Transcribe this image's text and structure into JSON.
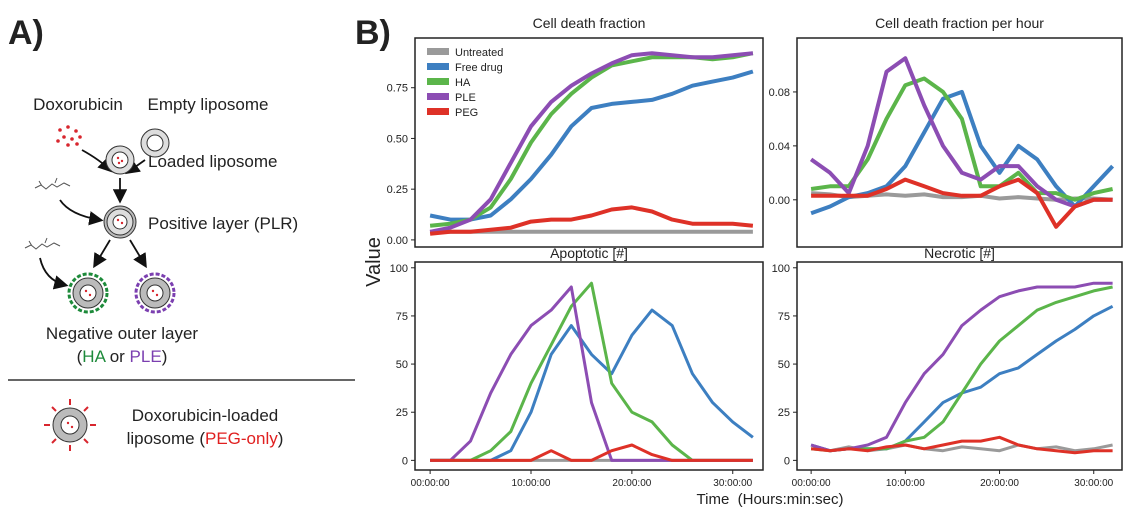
{
  "panel_a": {
    "label": "A)",
    "doxorubicin": "Doxorubicin",
    "empty_liposome": "Empty liposome",
    "loaded_liposome": "Loaded liposome",
    "positive_layer": "Positive layer (PLR)",
    "negative_layer": "Negative outer layer",
    "negative_open": "(",
    "negative_ha": "HA",
    "negative_or": " or ",
    "negative_ple": "PLE",
    "negative_close": ")",
    "peg_line1": "Doxorubicin-loaded",
    "peg_line2_open": "liposome (",
    "peg_line2_peg": "PEG-only",
    "peg_line2_close": ")"
  },
  "figure": {
    "panel_b_label": "B)",
    "y_label": "Value",
    "x_label": "Time  (Hours:min:sec)"
  },
  "chart_data": [
    {
      "type": "line",
      "title": "Cell death fraction",
      "legend": "upper left",
      "x": [
        0,
        2,
        4,
        6,
        8,
        10,
        12,
        14,
        16,
        18,
        20,
        22,
        24,
        26,
        28,
        30,
        32
      ],
      "xlim": [
        -1.5,
        33
      ],
      "ylim": [
        -0.035,
        0.995
      ],
      "yticks": [
        {
          "value": 0,
          "label": "0.00"
        },
        0.25,
        {
          "value": 0.5,
          "label": "0.50"
        },
        0.75
      ],
      "series": [
        {
          "name": "Untreated",
          "color": "#9a9a9a",
          "values": [
            0.04,
            0.04,
            0.04,
            0.04,
            0.04,
            0.04,
            0.04,
            0.04,
            0.04,
            0.04,
            0.04,
            0.04,
            0.04,
            0.04,
            0.04,
            0.04,
            0.04
          ]
        },
        {
          "name": "Free drug",
          "color": "#3d7fc1",
          "values": [
            0.12,
            0.1,
            0.1,
            0.12,
            0.2,
            0.3,
            0.42,
            0.56,
            0.65,
            0.67,
            0.68,
            0.69,
            0.72,
            0.76,
            0.78,
            0.8,
            0.83
          ]
        },
        {
          "name": "HA",
          "color": "#5bb54a",
          "values": [
            0.07,
            0.08,
            0.1,
            0.16,
            0.3,
            0.48,
            0.62,
            0.72,
            0.8,
            0.86,
            0.88,
            0.9,
            0.9,
            0.9,
            0.89,
            0.9,
            0.92
          ]
        },
        {
          "name": "PLE",
          "color": "#8c4db3",
          "values": [
            0.04,
            0.06,
            0.1,
            0.2,
            0.38,
            0.56,
            0.68,
            0.76,
            0.82,
            0.87,
            0.91,
            0.92,
            0.91,
            0.9,
            0.9,
            0.91,
            0.92
          ]
        },
        {
          "name": "PEG",
          "color": "#de3127",
          "values": [
            0.03,
            0.04,
            0.04,
            0.05,
            0.06,
            0.09,
            0.1,
            0.1,
            0.12,
            0.15,
            0.16,
            0.14,
            0.1,
            0.08,
            0.08,
            0.08,
            0.07
          ]
        }
      ]
    },
    {
      "type": "line",
      "title": "Cell death fraction per hour",
      "x": [
        0,
        2,
        4,
        6,
        8,
        10,
        12,
        14,
        16,
        18,
        20,
        22,
        24,
        26,
        28,
        30,
        32
      ],
      "xlim": [
        -1.5,
        33
      ],
      "ylim": [
        -0.035,
        0.12
      ],
      "yticks": [
        {
          "value": 0,
          "label": "0.00"
        },
        0.04,
        0.08
      ],
      "series": [
        {
          "color": "#9a9a9a",
          "values": [
            0.005,
            0.004,
            0.002,
            0.003,
            0.004,
            0.003,
            0.004,
            0.002,
            0.002,
            0.003,
            0.001,
            0.002,
            0.001,
            0,
            0.001,
            0.001,
            0
          ]
        },
        {
          "color": "#3d7fc1",
          "values": [
            -0.01,
            -0.005,
            0.002,
            0.005,
            0.01,
            0.025,
            0.05,
            0.075,
            0.08,
            0.04,
            0.02,
            0.04,
            0.03,
            0.01,
            -0.005,
            0.01,
            0.025
          ]
        },
        {
          "color": "#5bb54a",
          "values": [
            0.008,
            0.01,
            0.01,
            0.03,
            0.06,
            0.085,
            0.09,
            0.08,
            0.06,
            0.01,
            0.01,
            0.02,
            0.005,
            0.005,
            0,
            0.005,
            0.008
          ]
        },
        {
          "color": "#8c4db3",
          "values": [
            0.03,
            0.02,
            0.005,
            0.04,
            0.095,
            0.105,
            0.07,
            0.04,
            0.02,
            0.015,
            0.025,
            0.025,
            0.01,
            0,
            -0.005,
            0,
            0
          ]
        },
        {
          "color": "#de3127",
          "values": [
            0.003,
            0.003,
            0.003,
            0.003,
            0.008,
            0.015,
            0.01,
            0.005,
            0.003,
            0.003,
            0.01,
            0.015,
            0.005,
            -0.02,
            -0.005,
            0,
            0
          ]
        }
      ]
    },
    {
      "type": "line",
      "title": "Apoptotic [#]",
      "x": [
        0,
        2,
        4,
        6,
        8,
        10,
        12,
        14,
        16,
        18,
        20,
        22,
        24,
        26,
        28,
        30,
        32
      ],
      "xlim": [
        -1.5,
        33
      ],
      "xticks": [
        {
          "value": 0,
          "label": "00:00:00"
        },
        {
          "value": 10,
          "label": "10:00:00"
        },
        {
          "value": 20,
          "label": "20:00:00"
        },
        {
          "value": 30,
          "label": "30:00:00"
        }
      ],
      "ylim": [
        -5,
        103
      ],
      "yticks": [
        0,
        25,
        50,
        75,
        100
      ],
      "series": [
        {
          "color": "#9a9a9a",
          "values": [
            0,
            0,
            0,
            0,
            0,
            0,
            0,
            0,
            0,
            0,
            0,
            0,
            0,
            0,
            0,
            0,
            0
          ]
        },
        {
          "color": "#3d7fc1",
          "values": [
            0,
            0,
            0,
            0,
            5,
            25,
            55,
            70,
            55,
            45,
            65,
            78,
            70,
            45,
            30,
            20,
            12
          ]
        },
        {
          "color": "#5bb54a",
          "values": [
            0,
            0,
            0,
            5,
            15,
            40,
            60,
            80,
            92,
            40,
            25,
            20,
            8,
            0,
            0,
            0,
            0
          ]
        },
        {
          "color": "#8c4db3",
          "values": [
            0,
            0,
            10,
            35,
            55,
            70,
            78,
            90,
            30,
            0,
            0,
            0,
            0,
            0,
            0,
            0,
            0
          ]
        },
        {
          "color": "#de3127",
          "values": [
            0,
            0,
            0,
            0,
            0,
            0,
            5,
            0,
            0,
            5,
            8,
            3,
            0,
            0,
            0,
            0,
            0
          ]
        }
      ]
    },
    {
      "type": "line",
      "title": "Necrotic [#]",
      "x": [
        0,
        2,
        4,
        6,
        8,
        10,
        12,
        14,
        16,
        18,
        20,
        22,
        24,
        26,
        28,
        30,
        32
      ],
      "xlim": [
        -1.5,
        33
      ],
      "xticks": [
        {
          "value": 0,
          "label": "00:00:00"
        },
        {
          "value": 10,
          "label": "10:00:00"
        },
        {
          "value": 20,
          "label": "20:00:00"
        },
        {
          "value": 30,
          "label": "30:00:00"
        }
      ],
      "ylim": [
        -5,
        103
      ],
      "yticks": [
        0,
        25,
        50,
        75,
        100
      ],
      "series": [
        {
          "color": "#9a9a9a",
          "values": [
            8,
            5,
            7,
            5,
            6,
            8,
            6,
            5,
            7,
            6,
            5,
            8,
            6,
            7,
            5,
            6,
            8
          ]
        },
        {
          "color": "#3d7fc1",
          "values": [
            8,
            5,
            6,
            6,
            6,
            10,
            20,
            30,
            35,
            38,
            45,
            48,
            55,
            62,
            68,
            75,
            80
          ]
        },
        {
          "color": "#5bb54a",
          "values": [
            6,
            5,
            6,
            6,
            6,
            10,
            12,
            20,
            35,
            50,
            62,
            70,
            78,
            82,
            85,
            88,
            90
          ]
        },
        {
          "color": "#8c4db3",
          "values": [
            8,
            5,
            6,
            8,
            12,
            30,
            45,
            55,
            70,
            78,
            85,
            88,
            90,
            90,
            90,
            92,
            92
          ]
        },
        {
          "color": "#de3127",
          "values": [
            6,
            5,
            6,
            5,
            7,
            8,
            6,
            8,
            10,
            10,
            12,
            8,
            6,
            5,
            4,
            5,
            5
          ]
        }
      ]
    }
  ]
}
